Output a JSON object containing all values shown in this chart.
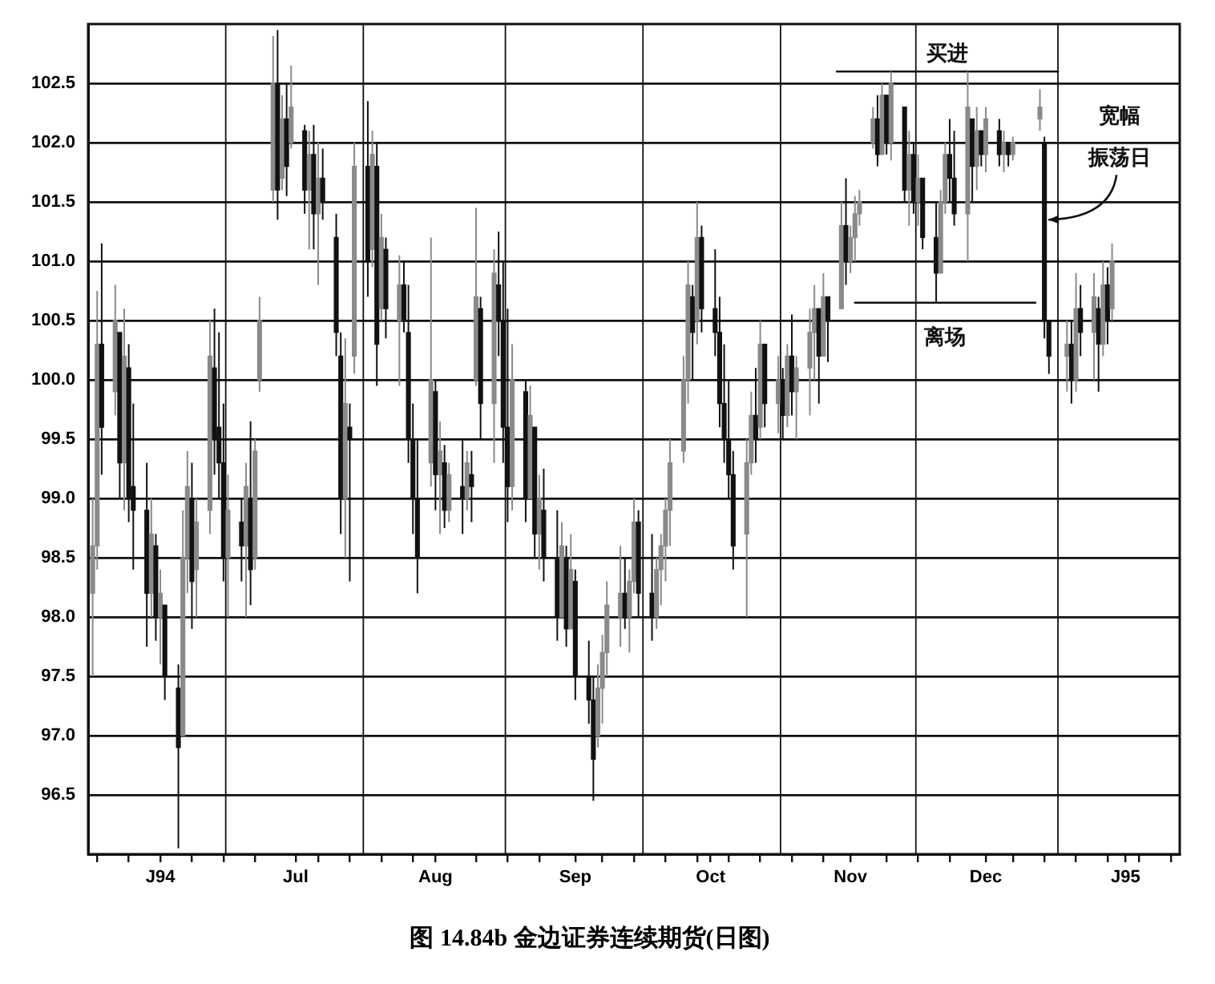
{
  "chart_data": {
    "type": "candlestick",
    "title": "图 14.84b 金边证券连续期货(日图)",
    "x": [
      "1994-06-01",
      "1994-06-02",
      "1994-06-03",
      "1994-06-06",
      "1994-06-07",
      "1994-06-08",
      "1994-06-09",
      "1994-06-10",
      "1994-06-13",
      "1994-06-14",
      "1994-06-15",
      "1994-06-16",
      "1994-06-17",
      "1994-06-20",
      "1994-06-21",
      "1994-06-22",
      "1994-06-23",
      "1994-06-24",
      "1994-06-27",
      "1994-06-28",
      "1994-06-29",
      "1994-06-30",
      "1994-07-01",
      "1994-07-04",
      "1994-07-05",
      "1994-07-06",
      "1994-07-07",
      "1994-07-08",
      "1994-07-11",
      "1994-07-12",
      "1994-07-13",
      "1994-07-14",
      "1994-07-15",
      "1994-07-18",
      "1994-07-19",
      "1994-07-20",
      "1994-07-21",
      "1994-07-22",
      "1994-07-25",
      "1994-07-26",
      "1994-07-27",
      "1994-07-28",
      "1994-07-29",
      "1994-08-01",
      "1994-08-02",
      "1994-08-03",
      "1994-08-04",
      "1994-08-05",
      "1994-08-08",
      "1994-08-09",
      "1994-08-10",
      "1994-08-11",
      "1994-08-12",
      "1994-08-15",
      "1994-08-16",
      "1994-08-17",
      "1994-08-18",
      "1994-08-19",
      "1994-08-22",
      "1994-08-23",
      "1994-08-24",
      "1994-08-25",
      "1994-08-26",
      "1994-08-29",
      "1994-08-30",
      "1994-08-31",
      "1994-09-01",
      "1994-09-02",
      "1994-09-05",
      "1994-09-06",
      "1994-09-07",
      "1994-09-08",
      "1994-09-09",
      "1994-09-12",
      "1994-09-13",
      "1994-09-14",
      "1994-09-15",
      "1994-09-16",
      "1994-09-19",
      "1994-09-20",
      "1994-09-21",
      "1994-09-22",
      "1994-09-23",
      "1994-09-26",
      "1994-09-27",
      "1994-09-28",
      "1994-09-29",
      "1994-09-30",
      "1994-10-03",
      "1994-10-04",
      "1994-10-05",
      "1994-10-06",
      "1994-10-07",
      "1994-10-10",
      "1994-10-11",
      "1994-10-12",
      "1994-10-13",
      "1994-10-14",
      "1994-10-17",
      "1994-10-18",
      "1994-10-19",
      "1994-10-20",
      "1994-10-21",
      "1994-10-24",
      "1994-10-25",
      "1994-10-26",
      "1994-10-27",
      "1994-10-28",
      "1994-10-31",
      "1994-11-01",
      "1994-11-02",
      "1994-11-03",
      "1994-11-04",
      "1994-11-07",
      "1994-11-08",
      "1994-11-09",
      "1994-11-10",
      "1994-11-11",
      "1994-11-14",
      "1994-11-15",
      "1994-11-16",
      "1994-11-17",
      "1994-11-18",
      "1994-11-21",
      "1994-11-22",
      "1994-11-23",
      "1994-11-24",
      "1994-11-25",
      "1994-11-28",
      "1994-11-29",
      "1994-11-30",
      "1994-12-01",
      "1994-12-02",
      "1994-12-05",
      "1994-12-06",
      "1994-12-07",
      "1994-12-08",
      "1994-12-09",
      "1994-12-12",
      "1994-12-13",
      "1994-12-14",
      "1994-12-15",
      "1994-12-16",
      "1994-12-19",
      "1994-12-20",
      "1994-12-21",
      "1994-12-22",
      "1994-12-28",
      "1994-12-29",
      "1994-12-30",
      "1995-01-03",
      "1995-01-04",
      "1995-01-05",
      "1995-01-06",
      "1995-01-09",
      "1995-01-10",
      "1995-01-11",
      "1995-01-12",
      "1995-01-13"
    ],
    "ohlc": [
      [
        98.2,
        99.0,
        97.5,
        98.6
      ],
      [
        98.6,
        100.75,
        98.4,
        100.3
      ],
      [
        100.3,
        101.15,
        99.2,
        99.6
      ],
      [
        99.9,
        100.8,
        99.7,
        100.5
      ],
      [
        100.4,
        100.4,
        99.0,
        99.3
      ],
      [
        99.3,
        100.6,
        98.9,
        100.2
      ],
      [
        100.1,
        100.3,
        98.8,
        99.0
      ],
      [
        99.1,
        99.8,
        98.4,
        98.9
      ],
      [
        98.9,
        99.3,
        97.75,
        98.2
      ],
      [
        98.2,
        99.0,
        98.0,
        98.7
      ],
      [
        98.6,
        98.7,
        97.8,
        98.0
      ],
      [
        98.0,
        98.4,
        97.6,
        98.2
      ],
      [
        98.1,
        98.1,
        97.3,
        97.5
      ],
      [
        97.4,
        97.6,
        96.05,
        96.9
      ],
      [
        97.0,
        98.9,
        97.0,
        98.5
      ],
      [
        98.5,
        99.4,
        98.2,
        99.1
      ],
      [
        99.0,
        99.3,
        97.9,
        98.3
      ],
      [
        98.4,
        99.0,
        98.0,
        98.8
      ],
      [
        98.9,
        100.5,
        98.7,
        100.2
      ],
      [
        100.1,
        100.6,
        99.2,
        99.5
      ],
      [
        99.6,
        100.4,
        99.0,
        99.3
      ],
      [
        99.3,
        99.8,
        98.3,
        98.5
      ],
      [
        98.5,
        99.2,
        98.0,
        98.9
      ],
      [
        98.8,
        99.0,
        98.3,
        98.6
      ],
      [
        98.6,
        99.3,
        98.0,
        99.1
      ],
      [
        99.0,
        99.65,
        98.1,
        98.4
      ],
      [
        98.5,
        99.5,
        98.4,
        99.4
      ],
      [
        100.0,
        100.7,
        99.9,
        100.5
      ],
      [
        101.6,
        102.9,
        101.5,
        102.5
      ],
      [
        102.5,
        102.95,
        101.35,
        101.6
      ],
      [
        101.7,
        102.4,
        101.6,
        102.2
      ],
      [
        102.2,
        102.5,
        101.55,
        101.8
      ],
      [
        102.0,
        102.65,
        101.95,
        102.3
      ],
      [
        102.1,
        102.15,
        101.4,
        101.6
      ],
      [
        101.6,
        102.1,
        101.1,
        101.9
      ],
      [
        101.9,
        102.15,
        101.1,
        101.4
      ],
      [
        101.4,
        102.0,
        100.8,
        101.7
      ],
      [
        101.7,
        101.95,
        101.35,
        101.5
      ],
      [
        101.2,
        101.4,
        100.2,
        100.4
      ],
      [
        100.2,
        100.4,
        98.7,
        99.0
      ],
      [
        99.0,
        100.35,
        98.5,
        99.8
      ],
      [
        99.6,
        99.8,
        98.3,
        99.5
      ],
      [
        100.2,
        102.0,
        100.05,
        101.8
      ],
      [
        101.8,
        102.35,
        100.7,
        101.0
      ],
      [
        101.1,
        102.1,
        100.95,
        101.9
      ],
      [
        101.8,
        102.0,
        99.95,
        100.3
      ],
      [
        100.6,
        101.4,
        100.5,
        101.2
      ],
      [
        101.1,
        101.2,
        100.35,
        100.6
      ],
      [
        100.5,
        101.05,
        99.95,
        100.8
      ],
      [
        100.8,
        101.0,
        100.4,
        100.5
      ],
      [
        100.4,
        100.8,
        99.3,
        99.5
      ],
      [
        99.5,
        99.8,
        98.7,
        99.0
      ],
      [
        99.0,
        99.5,
        98.2,
        98.5
      ],
      [
        99.3,
        101.2,
        99.1,
        100.0
      ],
      [
        99.9,
        100.0,
        98.9,
        99.2
      ],
      [
        99.2,
        99.65,
        98.7,
        99.4
      ],
      [
        99.3,
        99.45,
        98.75,
        98.9
      ],
      [
        98.9,
        99.3,
        98.8,
        99.2
      ],
      [
        99.1,
        99.5,
        98.7,
        99.0
      ],
      [
        99.0,
        99.4,
        98.9,
        99.3
      ],
      [
        99.2,
        99.4,
        98.8,
        99.1
      ],
      [
        100.0,
        101.45,
        99.95,
        100.7
      ],
      [
        100.6,
        100.7,
        99.5,
        99.8
      ],
      [
        99.8,
        101.1,
        99.3,
        100.9
      ],
      [
        100.8,
        101.25,
        100.2,
        100.5
      ],
      [
        100.5,
        101.0,
        99.3,
        99.6
      ],
      [
        99.6,
        100.6,
        98.8,
        99.1
      ],
      [
        99.1,
        100.3,
        98.9,
        100.0
      ],
      [
        99.9,
        100.0,
        98.8,
        99.0
      ],
      [
        99.0,
        99.95,
        99.0,
        99.7
      ],
      [
        99.6,
        99.6,
        98.5,
        98.7
      ],
      [
        98.7,
        99.2,
        98.4,
        99.0
      ],
      [
        98.9,
        99.25,
        98.3,
        98.5
      ],
      [
        98.5,
        98.9,
        97.8,
        98.0
      ],
      [
        98.0,
        98.8,
        98.0,
        98.6
      ],
      [
        98.5,
        98.6,
        97.75,
        97.9
      ],
      [
        97.9,
        98.7,
        97.9,
        98.4
      ],
      [
        98.3,
        98.4,
        97.3,
        97.5
      ],
      [
        97.5,
        97.8,
        97.1,
        97.3
      ],
      [
        97.3,
        97.5,
        96.45,
        96.8
      ],
      [
        97.0,
        97.6,
        96.9,
        97.4
      ],
      [
        97.4,
        97.85,
        97.1,
        97.7
      ],
      [
        97.7,
        98.3,
        97.5,
        98.1
      ],
      [
        98.0,
        98.6,
        97.75,
        98.2
      ],
      [
        98.2,
        98.5,
        97.9,
        98.0
      ],
      [
        98.0,
        98.4,
        97.7,
        98.3
      ],
      [
        98.3,
        99.0,
        98.2,
        98.8
      ],
      [
        98.8,
        98.9,
        98.0,
        98.2
      ],
      [
        98.2,
        98.7,
        97.8,
        98.0
      ],
      [
        98.0,
        98.5,
        97.9,
        98.4
      ],
      [
        98.4,
        98.7,
        98.1,
        98.6
      ],
      [
        98.6,
        99.0,
        98.3,
        98.9
      ],
      [
        98.9,
        99.5,
        98.6,
        99.3
      ],
      [
        99.4,
        100.2,
        99.3,
        100.0
      ],
      [
        100.0,
        101.0,
        99.8,
        100.8
      ],
      [
        100.7,
        100.8,
        100.0,
        100.4
      ],
      [
        100.5,
        101.5,
        100.3,
        101.2
      ],
      [
        101.2,
        101.3,
        100.4,
        100.6
      ],
      [
        100.6,
        101.1,
        100.2,
        100.4
      ],
      [
        100.4,
        100.7,
        99.6,
        99.8
      ],
      [
        99.8,
        100.3,
        99.3,
        99.5
      ],
      [
        99.5,
        100.0,
        99.0,
        99.2
      ],
      [
        99.2,
        99.4,
        98.4,
        98.6
      ],
      [
        98.7,
        99.5,
        98.0,
        99.3
      ],
      [
        99.3,
        99.9,
        99.2,
        99.7
      ],
      [
        99.7,
        100.1,
        99.3,
        99.5
      ],
      [
        99.6,
        100.5,
        99.5,
        100.3
      ],
      [
        100.3,
        100.3,
        99.6,
        99.8
      ],
      [
        99.8,
        100.2,
        99.55,
        100.0
      ],
      [
        100.0,
        100.1,
        99.5,
        99.7
      ],
      [
        99.7,
        100.3,
        99.6,
        100.2
      ],
      [
        100.2,
        100.55,
        99.7,
        99.9
      ],
      [
        99.9,
        100.2,
        99.5,
        100.1
      ],
      [
        100.1,
        100.6,
        99.7,
        100.4
      ],
      [
        100.4,
        100.8,
        100.0,
        100.6
      ],
      [
        100.6,
        100.6,
        99.8,
        100.2
      ],
      [
        100.2,
        100.9,
        100.2,
        100.7
      ],
      [
        100.7,
        100.7,
        100.15,
        100.5
      ],
      [
        100.6,
        101.5,
        100.6,
        101.3
      ],
      [
        101.3,
        101.7,
        100.8,
        101.0
      ],
      [
        101.0,
        101.3,
        100.9,
        101.2
      ],
      [
        101.2,
        101.55,
        101.0,
        101.4
      ],
      [
        101.4,
        101.6,
        101.3,
        101.5
      ],
      [
        102.0,
        102.3,
        101.95,
        102.2
      ],
      [
        102.2,
        102.4,
        101.8,
        101.9
      ],
      [
        101.9,
        102.5,
        101.9,
        102.4
      ],
      [
        102.4,
        102.4,
        101.9,
        102.0
      ],
      [
        102.0,
        102.6,
        101.85,
        102.5
      ],
      [
        102.3,
        102.3,
        101.5,
        101.6
      ],
      [
        101.6,
        102.1,
        101.3,
        101.9
      ],
      [
        101.9,
        102.0,
        101.4,
        101.5
      ],
      [
        101.5,
        101.9,
        101.3,
        101.7
      ],
      [
        101.7,
        101.7,
        101.1,
        101.2
      ],
      [
        101.2,
        101.5,
        100.65,
        100.9
      ],
      [
        100.9,
        101.6,
        100.9,
        101.5
      ],
      [
        101.5,
        102.0,
        101.4,
        101.9
      ],
      [
        101.9,
        102.2,
        101.5,
        101.7
      ],
      [
        101.7,
        102.1,
        101.3,
        101.4
      ],
      [
        101.4,
        102.6,
        101.0,
        102.3
      ],
      [
        102.2,
        102.2,
        101.5,
        101.8
      ],
      [
        101.8,
        102.3,
        101.6,
        102.1
      ],
      [
        102.1,
        102.1,
        101.8,
        101.9
      ],
      [
        101.9,
        102.3,
        101.75,
        102.2
      ],
      [
        102.1,
        102.2,
        101.8,
        101.9
      ],
      [
        101.9,
        102.1,
        101.75,
        102.0
      ],
      [
        102.0,
        102.0,
        101.8,
        101.9
      ],
      [
        101.9,
        102.05,
        101.85,
        102.0
      ],
      [
        102.2,
        102.45,
        102.1,
        102.3
      ],
      [
        102.0,
        102.05,
        100.35,
        100.5
      ],
      [
        100.5,
        100.5,
        100.05,
        100.2
      ],
      [
        100.2,
        100.5,
        99.9,
        100.3
      ],
      [
        100.3,
        100.5,
        99.8,
        100.0
      ],
      [
        100.0,
        100.9,
        99.9,
        100.6
      ],
      [
        100.6,
        100.8,
        100.2,
        100.4
      ],
      [
        100.4,
        100.9,
        100.0,
        100.7
      ],
      [
        100.6,
        100.7,
        99.9,
        100.3
      ],
      [
        100.3,
        101.0,
        100.2,
        100.8
      ],
      [
        100.8,
        100.95,
        100.3,
        100.5
      ],
      [
        100.6,
        101.15,
        100.5,
        101.0
      ]
    ],
    "colors": [
      "#8a8a8a",
      "#8a8a8a",
      "#111111",
      "#8a8a8a",
      "#111111",
      "#8a8a8a",
      "#111111",
      "#111111",
      "#111111",
      "#8a8a8a",
      "#111111",
      "#8a8a8a",
      "#111111",
      "#111111",
      "#8a8a8a",
      "#8a8a8a",
      "#111111",
      "#8a8a8a",
      "#8a8a8a",
      "#111111",
      "#111111",
      "#111111",
      "#8a8a8a",
      "#111111",
      "#8a8a8a",
      "#111111",
      "#8a8a8a",
      "#8a8a8a",
      "#8a8a8a",
      "#111111",
      "#8a8a8a",
      "#111111",
      "#8a8a8a",
      "#111111",
      "#8a8a8a",
      "#111111",
      "#8a8a8a",
      "#111111",
      "#111111",
      "#111111",
      "#8a8a8a",
      "#111111",
      "#8a8a8a",
      "#111111",
      "#8a8a8a",
      "#111111",
      "#8a8a8a",
      "#111111",
      "#8a8a8a",
      "#111111",
      "#111111",
      "#111111",
      "#111111",
      "#8a8a8a",
      "#111111",
      "#8a8a8a",
      "#111111",
      "#8a8a8a",
      "#111111",
      "#8a8a8a",
      "#111111",
      "#8a8a8a",
      "#111111",
      "#8a8a8a",
      "#111111",
      "#111111",
      "#111111",
      "#8a8a8a",
      "#111111",
      "#8a8a8a",
      "#111111",
      "#8a8a8a",
      "#111111",
      "#111111",
      "#8a8a8a",
      "#111111",
      "#8a8a8a",
      "#111111",
      "#111111",
      "#111111",
      "#8a8a8a",
      "#8a8a8a",
      "#8a8a8a",
      "#8a8a8a",
      "#111111",
      "#8a8a8a",
      "#8a8a8a",
      "#111111",
      "#111111",
      "#8a8a8a",
      "#8a8a8a",
      "#8a8a8a",
      "#8a8a8a",
      "#8a8a8a",
      "#8a8a8a",
      "#111111",
      "#8a8a8a",
      "#111111",
      "#111111",
      "#111111",
      "#111111",
      "#111111",
      "#111111",
      "#8a8a8a",
      "#8a8a8a",
      "#111111",
      "#8a8a8a",
      "#111111",
      "#8a8a8a",
      "#111111",
      "#8a8a8a",
      "#111111",
      "#8a8a8a",
      "#8a8a8a",
      "#8a8a8a",
      "#111111",
      "#8a8a8a",
      "#111111",
      "#8a8a8a",
      "#111111",
      "#8a8a8a",
      "#8a8a8a",
      "#8a8a8a",
      "#8a8a8a",
      "#111111",
      "#8a8a8a",
      "#111111",
      "#8a8a8a",
      "#111111",
      "#8a8a8a",
      "#111111",
      "#8a8a8a",
      "#111111",
      "#111111",
      "#8a8a8a",
      "#8a8a8a",
      "#111111",
      "#111111",
      "#8a8a8a",
      "#111111",
      "#8a8a8a",
      "#111111",
      "#8a8a8a",
      "#111111",
      "#8a8a8a",
      "#111111",
      "#8a8a8a",
      "#8a8a8a",
      "#111111",
      "#111111",
      "#8a8a8a",
      "#111111",
      "#8a8a8a",
      "#111111",
      "#8a8a8a",
      "#111111",
      "#8a8a8a",
      "#111111",
      "#8a8a8a"
    ],
    "series": [
      {
        "type": "line",
        "name": "买进",
        "color": "#111111",
        "x": [
          "1994-11-13",
          "1995-01-01"
        ],
        "values": [
          102.6,
          102.6
        ]
      },
      {
        "type": "line",
        "name": "离场",
        "color": "#111111",
        "x": [
          "1994-11-17",
          "1994-12-27"
        ],
        "values": [
          100.65,
          100.65
        ]
      }
    ],
    "xlim": [
      "1994-05-31",
      "1995-01-28"
    ],
    "xticks": [
      {
        "value": "1994-06-02",
        "label": null
      },
      {
        "value": "1994-06-09",
        "label": null
      },
      {
        "value": "1994-06-16",
        "label": "J94"
      },
      {
        "value": "1994-06-23",
        "label": null
      },
      {
        "value": "1994-06-30",
        "label": null
      },
      {
        "value": "1994-07-07",
        "label": null
      },
      {
        "value": "1994-07-16",
        "label": "Jul"
      },
      {
        "value": "1994-07-21",
        "label": null
      },
      {
        "value": "1994-07-28",
        "label": null
      },
      {
        "value": "1994-08-04",
        "label": null
      },
      {
        "value": "1994-08-11",
        "label": null
      },
      {
        "value": "1994-08-16",
        "label": "Aug"
      },
      {
        "value": "1994-08-25",
        "label": null
      },
      {
        "value": "1994-09-01",
        "label": null
      },
      {
        "value": "1994-09-08",
        "label": null
      },
      {
        "value": "1994-09-16",
        "label": "Sep"
      },
      {
        "value": "1994-09-22",
        "label": null
      },
      {
        "value": "1994-09-29",
        "label": null
      },
      {
        "value": "1994-10-06",
        "label": null
      },
      {
        "value": "1994-10-13",
        "label": null
      },
      {
        "value": "1994-10-16",
        "label": "Oct"
      },
      {
        "value": "1994-10-20",
        "label": null
      },
      {
        "value": "1994-10-27",
        "label": null
      },
      {
        "value": "1994-11-03",
        "label": null
      },
      {
        "value": "1994-11-10",
        "label": null
      },
      {
        "value": "1994-11-16",
        "label": "Nov"
      },
      {
        "value": "1994-11-24",
        "label": null
      },
      {
        "value": "1994-12-01",
        "label": null
      },
      {
        "value": "1994-12-08",
        "label": null
      },
      {
        "value": "1994-12-16",
        "label": "Dec"
      },
      {
        "value": "1994-12-22",
        "label": null
      },
      {
        "value": "1994-12-29",
        "label": null
      },
      {
        "value": "1995-01-05",
        "label": null
      },
      {
        "value": "1995-01-12",
        "label": null
      },
      {
        "value": "1995-01-16",
        "label": "J95"
      },
      {
        "value": "1995-01-19",
        "label": null
      },
      {
        "value": "1995-01-26",
        "label": null
      }
    ],
    "ylim": [
      96,
      103
    ],
    "yticks": [
      96.5,
      {
        "value": 97,
        "label": "97.0"
      },
      97.5,
      {
        "value": 98,
        "label": "98.0"
      },
      98.5,
      {
        "value": 99,
        "label": "99.0"
      },
      99.5,
      {
        "value": 100,
        "label": "100.0"
      },
      100.5,
      {
        "value": 101,
        "label": "101.0"
      },
      101.5,
      {
        "value": 102,
        "label": "102.0"
      },
      102.5
    ],
    "grid": "y",
    "legend": false,
    "ref_lines": [
      {
        "axis": "x",
        "value": "1994-06-30T12:00",
        "color": "#111111"
      },
      {
        "axis": "x",
        "value": "1994-07-31",
        "color": "#111111"
      },
      {
        "axis": "x",
        "value": "1994-08-31T12:00",
        "color": "#111111"
      },
      {
        "axis": "x",
        "value": "1994-10-01",
        "color": "#111111"
      },
      {
        "axis": "x",
        "value": "1994-10-31T12:00",
        "color": "#111111"
      },
      {
        "axis": "x",
        "value": "1994-11-30T12:00",
        "color": "#111111"
      },
      {
        "axis": "x",
        "value": "1995-01-01",
        "color": "#111111"
      }
    ],
    "annotations": [
      {
        "text": "宽幅振荡日",
        "x": "1994-12-29",
        "y": 101.35
      }
    ]
  }
}
